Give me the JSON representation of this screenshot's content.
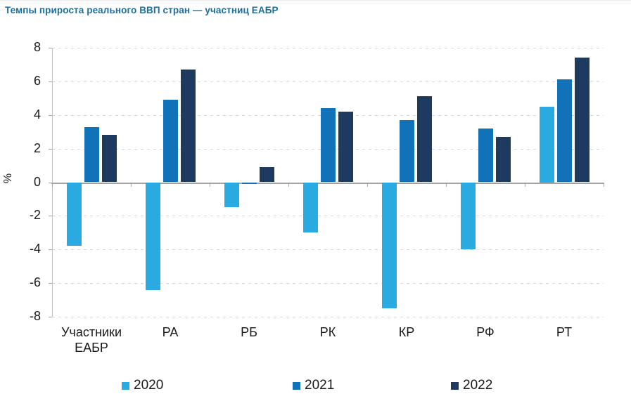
{
  "chart_data": {
    "type": "bar",
    "title": "Темпы прироста реального ВВП стран — участниц ЕАБР",
    "xlabel": "",
    "ylabel": "%",
    "ylim": [
      -8,
      8
    ],
    "ytick_step": 2,
    "yticks": [
      8,
      6,
      4,
      2,
      0,
      -2,
      -4,
      -6,
      -8
    ],
    "grid": "dashed-horizontal",
    "legend_position": "bottom",
    "categories": [
      "Участники ЕАБР",
      "РА",
      "РБ",
      "РК",
      "КР",
      "РФ",
      "РТ"
    ],
    "series": [
      {
        "name": "2020",
        "color": "#29ABE2",
        "values": [
          -3.8,
          -6.4,
          -1.5,
          -3.0,
          -7.5,
          -4.0,
          4.5
        ]
      },
      {
        "name": "2021",
        "color": "#1172B8",
        "values": [
          3.3,
          4.9,
          -0.1,
          4.4,
          3.7,
          3.2,
          6.1
        ]
      },
      {
        "name": "2022",
        "color": "#1E3A5F",
        "values": [
          2.8,
          6.7,
          0.9,
          4.2,
          5.1,
          2.7,
          7.4
        ]
      }
    ],
    "colors": {
      "title_text": "#1E6D9B",
      "axis": "#A3A3A3",
      "axis_line": "#C2C2C2",
      "gridline": "#D9D9D9",
      "tick_text": "#1A1A1A"
    }
  }
}
